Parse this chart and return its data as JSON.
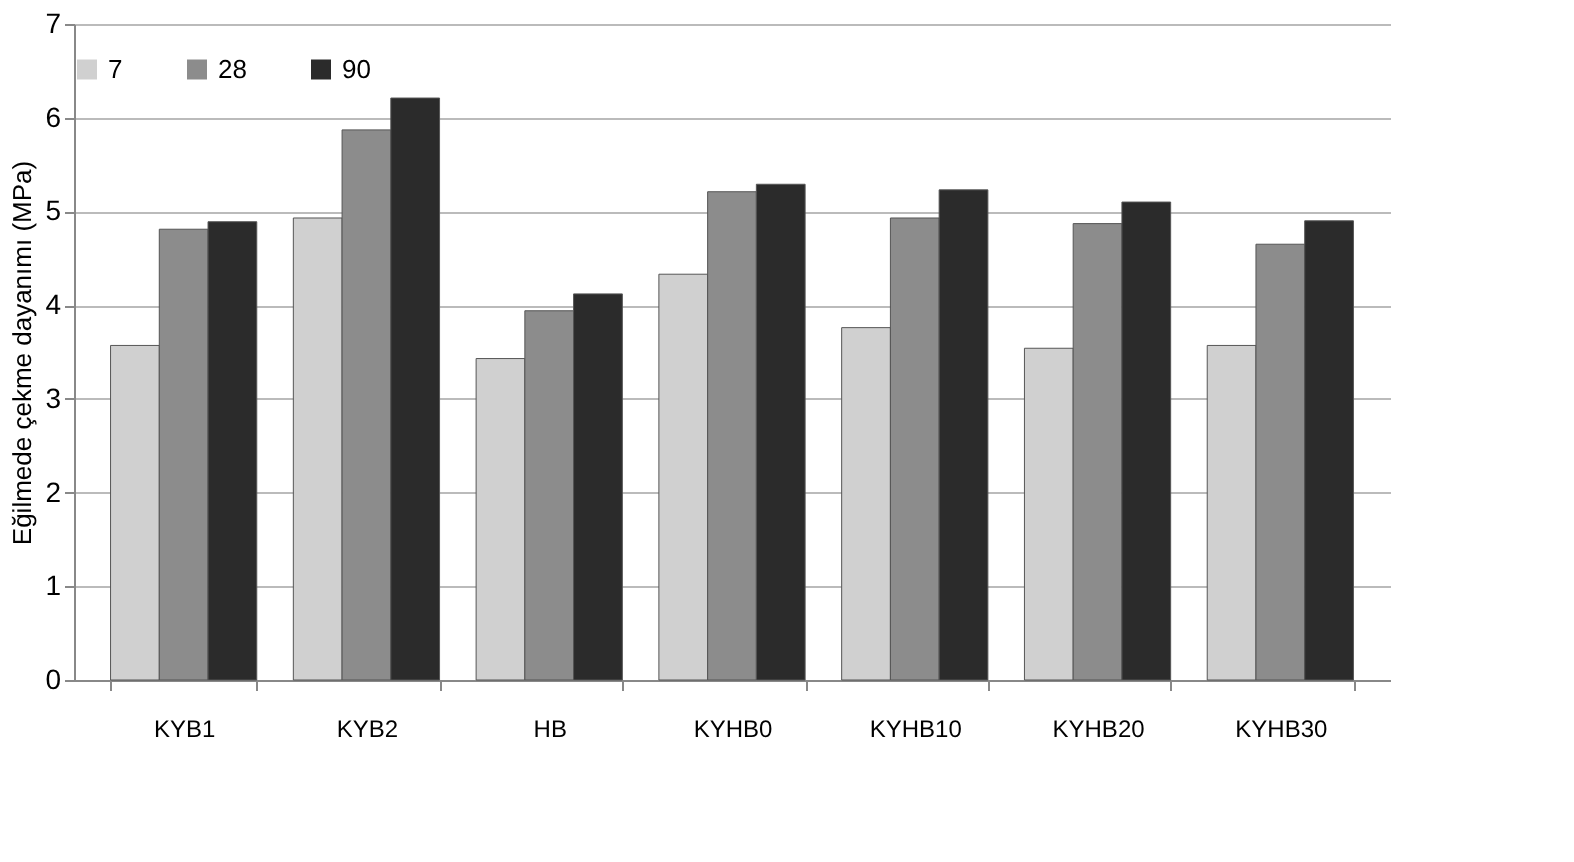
{
  "chart_data": {
    "type": "bar",
    "ylabel": "Eğilmede çekme dayanımı  (MPa)",
    "categories": [
      "KYB1",
      "KYB2",
      "HB",
      "KYHB0",
      "KYHB10",
      "KYHB20",
      "KYHB30"
    ],
    "series": [
      {
        "name": "7",
        "color": "#d0d0d0",
        "values": [
          3.57,
          4.93,
          3.43,
          4.33,
          3.76,
          3.54,
          3.57
        ]
      },
      {
        "name": "28",
        "color": "#8c8c8c",
        "values": [
          4.81,
          5.87,
          3.94,
          5.21,
          4.93,
          4.87,
          4.65
        ]
      },
      {
        "name": "90",
        "color": "#2b2b2b",
        "values": [
          4.89,
          6.21,
          4.12,
          5.29,
          5.23,
          5.1,
          4.9
        ]
      }
    ],
    "ylim": [
      0,
      7
    ],
    "yticks": [
      0,
      1,
      2,
      3,
      4,
      5,
      6,
      7
    ],
    "grid": "y",
    "legend": "top"
  }
}
